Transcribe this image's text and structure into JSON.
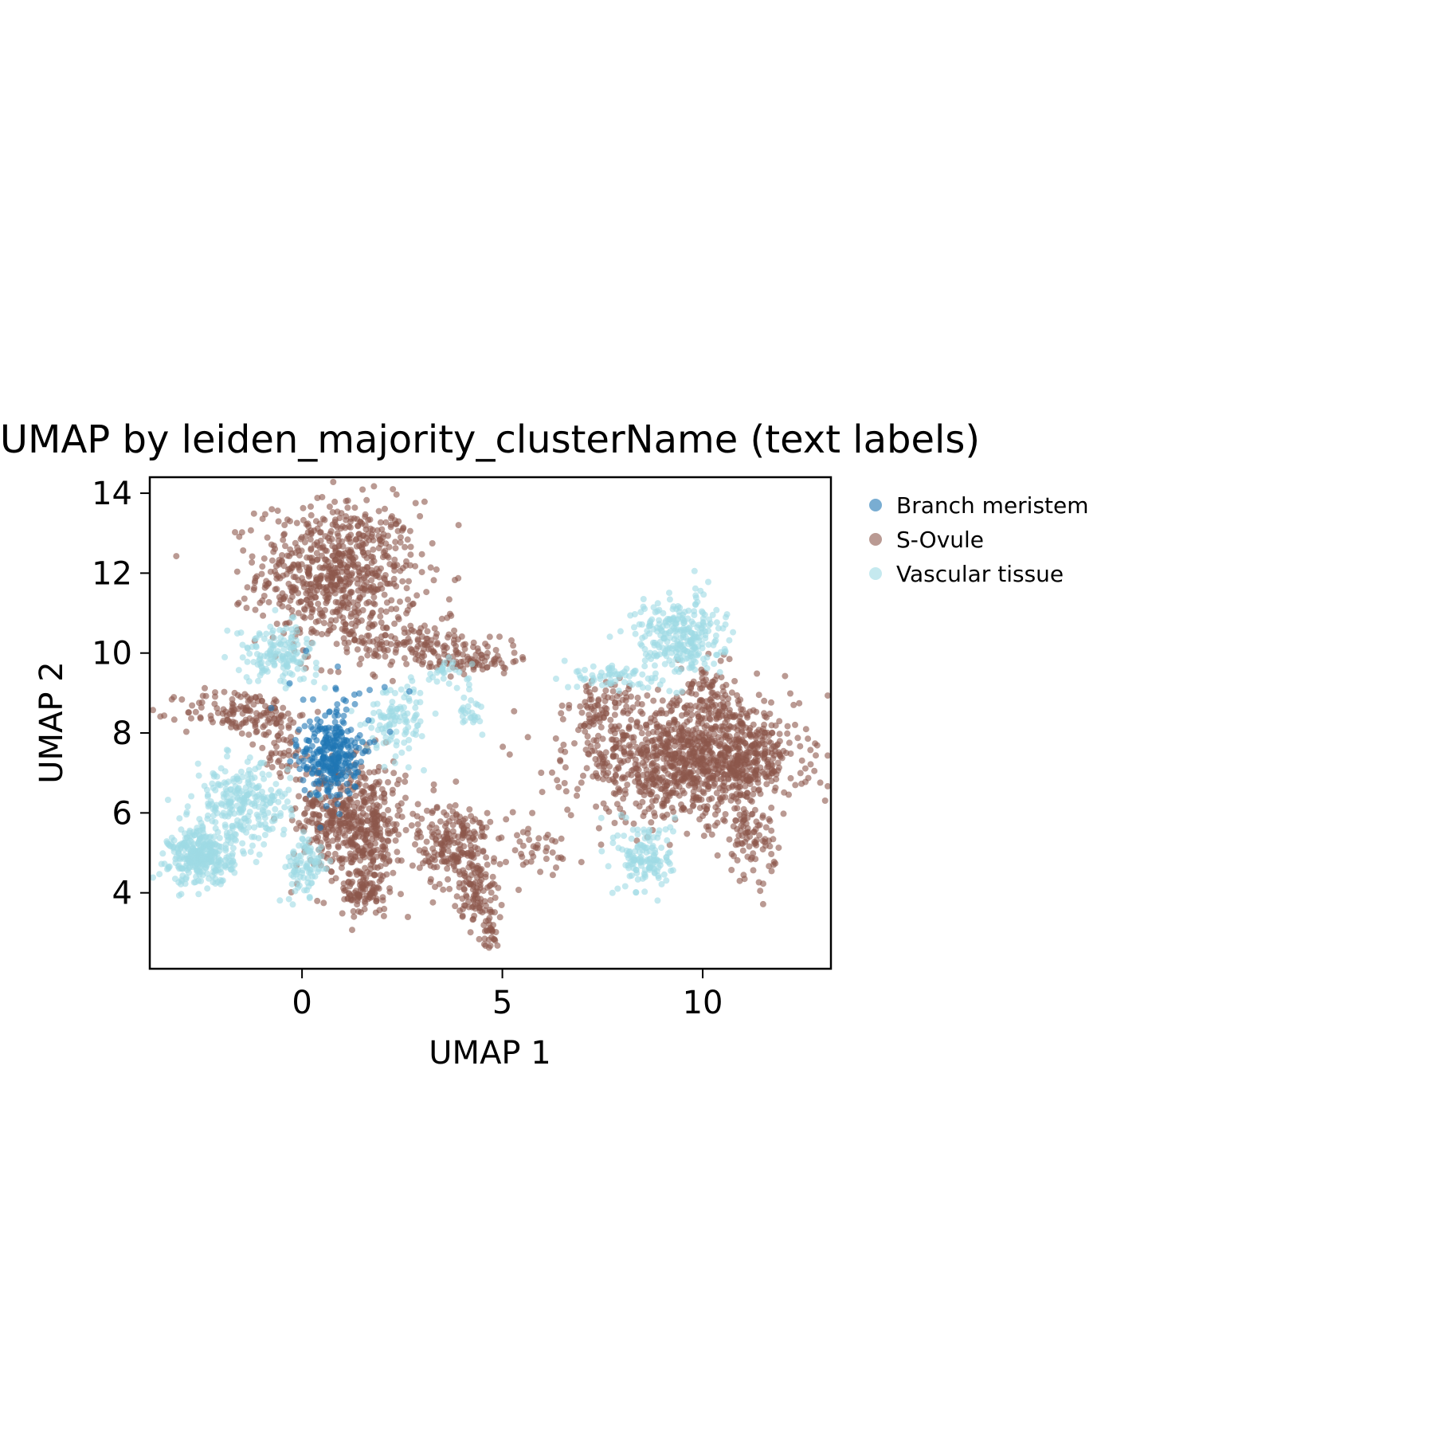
{
  "chart_data": {
    "type": "scatter",
    "title": "UMAP by leiden_majority_clusterName (text labels)",
    "xlabel": "UMAP 1",
    "ylabel": "UMAP 2",
    "xlim": [
      -3.8,
      13.2
    ],
    "ylim": [
      2.1,
      14.4
    ],
    "xticks": [
      0,
      5,
      10
    ],
    "yticks": [
      4,
      6,
      8,
      10,
      12,
      14
    ],
    "grid": false,
    "legend": {
      "location": "outside right, top",
      "marker": "filled circle"
    },
    "series": [
      {
        "name": "Branch meristem",
        "color": "#1f77b4",
        "clusters": [
          {
            "center": [
              0.7,
              7.4
            ],
            "spread": [
              0.35,
              0.5
            ],
            "count": 260
          },
          {
            "center": [
              0.9,
              8.6
            ],
            "spread": [
              0.6,
              0.6
            ],
            "count": 40
          }
        ]
      },
      {
        "name": "S-Ovule",
        "color": "#8c564b",
        "clusters": [
          {
            "center": [
              0.9,
              12.0
            ],
            "spread": [
              1.0,
              0.9
            ],
            "count": 700
          },
          {
            "center": [
              2.6,
              10.2
            ],
            "spread": [
              1.2,
              0.3
            ],
            "count": 160
          },
          {
            "center": [
              4.4,
              9.8
            ],
            "spread": [
              0.5,
              0.15
            ],
            "count": 60
          },
          {
            "center": [
              -1.6,
              8.5
            ],
            "spread": [
              0.7,
              0.3
            ],
            "count": 120
          },
          {
            "center": [
              -0.5,
              7.8
            ],
            "spread": [
              0.3,
              0.5
            ],
            "count": 60
          },
          {
            "center": [
              1.5,
              5.7
            ],
            "spread": [
              0.55,
              0.8
            ],
            "count": 420
          },
          {
            "center": [
              1.6,
              4.0
            ],
            "spread": [
              0.3,
              0.35
            ],
            "count": 80
          },
          {
            "center": [
              0.5,
              6.0
            ],
            "spread": [
              0.4,
              0.6
            ],
            "count": 120
          },
          {
            "center": [
              3.8,
              5.2
            ],
            "spread": [
              0.45,
              0.55
            ],
            "count": 220
          },
          {
            "center": [
              4.4,
              4.0
            ],
            "spread": [
              0.25,
              0.4
            ],
            "count": 80
          },
          {
            "center": [
              4.7,
              3.1
            ],
            "spread": [
              0.1,
              0.25
            ],
            "count": 30
          },
          {
            "center": [
              5.8,
              5.0
            ],
            "spread": [
              0.6,
              0.35
            ],
            "count": 40
          },
          {
            "center": [
              9.5,
              7.3
            ],
            "spread": [
              1.4,
              0.75
            ],
            "count": 900
          },
          {
            "center": [
              11.0,
              7.4
            ],
            "spread": [
              0.6,
              0.55
            ],
            "count": 250
          },
          {
            "center": [
              11.2,
              5.3
            ],
            "spread": [
              0.3,
              0.45
            ],
            "count": 80
          },
          {
            "center": [
              7.5,
              8.5
            ],
            "spread": [
              0.4,
              0.5
            ],
            "count": 90
          },
          {
            "center": [
              10.1,
              9.0
            ],
            "spread": [
              0.4,
              0.5
            ],
            "count": 80
          }
        ]
      },
      {
        "name": "Vascular tissue",
        "color": "#9edae5",
        "clusters": [
          {
            "center": [
              -2.5,
              4.9
            ],
            "spread": [
              0.4,
              0.35
            ],
            "count": 320
          },
          {
            "center": [
              -1.5,
              6.2
            ],
            "spread": [
              0.6,
              0.5
            ],
            "count": 260
          },
          {
            "center": [
              0.1,
              4.6
            ],
            "spread": [
              0.25,
              0.4
            ],
            "count": 90
          },
          {
            "center": [
              -0.6,
              10.0
            ],
            "spread": [
              0.5,
              0.35
            ],
            "count": 150
          },
          {
            "center": [
              2.4,
              8.4
            ],
            "spread": [
              0.4,
              0.45
            ],
            "count": 110
          },
          {
            "center": [
              3.6,
              9.5
            ],
            "spread": [
              0.3,
              0.15
            ],
            "count": 30
          },
          {
            "center": [
              4.2,
              8.5
            ],
            "spread": [
              0.15,
              0.2
            ],
            "count": 25
          },
          {
            "center": [
              9.4,
              10.4
            ],
            "spread": [
              0.55,
              0.5
            ],
            "count": 280
          },
          {
            "center": [
              7.8,
              9.4
            ],
            "spread": [
              0.5,
              0.2
            ],
            "count": 60
          },
          {
            "center": [
              8.6,
              4.9
            ],
            "spread": [
              0.35,
              0.45
            ],
            "count": 140
          }
        ]
      }
    ]
  }
}
